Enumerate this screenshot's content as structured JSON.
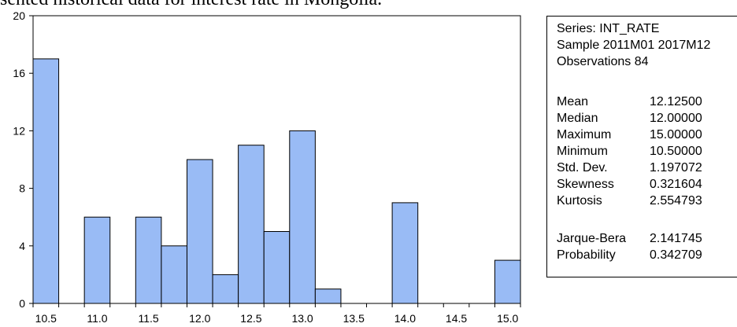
{
  "caption": "sented historical data for interest rate in Mongolia.",
  "chart_data": {
    "type": "bar",
    "title": "",
    "xlabel": "",
    "ylabel": "",
    "bin_width": 0.25,
    "bins": [
      {
        "start": 10.5,
        "count": 17
      },
      {
        "start": 10.75,
        "count": 0
      },
      {
        "start": 11.0,
        "count": 6
      },
      {
        "start": 11.25,
        "count": 0
      },
      {
        "start": 11.5,
        "count": 6
      },
      {
        "start": 11.75,
        "count": 4
      },
      {
        "start": 12.0,
        "count": 10
      },
      {
        "start": 12.25,
        "count": 2
      },
      {
        "start": 12.5,
        "count": 11
      },
      {
        "start": 12.75,
        "count": 5
      },
      {
        "start": 13.0,
        "count": 12
      },
      {
        "start": 13.25,
        "count": 1
      },
      {
        "start": 13.5,
        "count": 0
      },
      {
        "start": 13.75,
        "count": 0
      },
      {
        "start": 14.0,
        "count": 7
      },
      {
        "start": 14.25,
        "count": 0
      },
      {
        "start": 14.5,
        "count": 0
      },
      {
        "start": 14.75,
        "count": 0
      },
      {
        "start": 15.0,
        "count": 3
      }
    ],
    "xlim": [
      10.5,
      15.25
    ],
    "ylim": [
      0,
      20
    ],
    "x_ticks": [
      "10.5",
      "11.0",
      "11.5",
      "12.0",
      "12.5",
      "13.0",
      "13.5",
      "14.0",
      "14.5",
      "15.0"
    ],
    "y_ticks": [
      "0",
      "4",
      "8",
      "12",
      "16",
      "20"
    ],
    "bar_color": "#99bbf5",
    "grid": false
  },
  "stats": {
    "series": "Series: INT_RATE",
    "sample": "Sample 2011M01 2017M12",
    "observations": "Observations 84",
    "rows": [
      {
        "label": "Mean",
        "value": "12.12500"
      },
      {
        "label": "Median",
        "value": "12.00000"
      },
      {
        "label": "Maximum",
        "value": "15.00000"
      },
      {
        "label": "Minimum",
        "value": "10.50000"
      },
      {
        "label": "Std. Dev.",
        "value": "1.197072"
      },
      {
        "label": "Skewness",
        "value": "0.321604"
      },
      {
        "label": "Kurtosis",
        "value": "2.554793"
      },
      {
        "label": "Jarque-Bera",
        "value": "2.141745"
      },
      {
        "label": "Probability",
        "value": "0.342709"
      }
    ]
  }
}
